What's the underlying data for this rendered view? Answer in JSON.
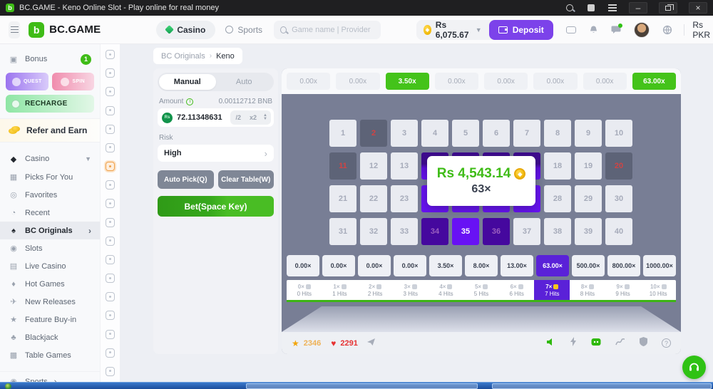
{
  "titlebar": {
    "title": "BC.GAME - Keno Online Slot - Play online for real money"
  },
  "header": {
    "brand": "BC.GAME",
    "casino_tab": "Casino",
    "sports_tab": "Sports",
    "search_placeholder": "Game name | Provider",
    "balance": "Rs 6,075.67",
    "deposit_label": "Deposit",
    "currency_label": "Rs PKR"
  },
  "sidebar": {
    "bonus_label": "Bonus",
    "bonus_badge": "1",
    "quest_label": "QUEST",
    "spin_label": "SPIN",
    "recharge_label": "RECHARGE",
    "refer_label": "Refer and Earn",
    "casino_label": "Casino",
    "items": [
      {
        "label": "Picks For You",
        "icon": "grid-icon"
      },
      {
        "label": "Favorites",
        "icon": "favorites-icon"
      },
      {
        "label": "Recent",
        "icon": "recent-icon"
      },
      {
        "label": "BC Originals",
        "icon": "bc-originals-icon",
        "active": true,
        "chevron": true
      },
      {
        "label": "Slots",
        "icon": "slots-icon"
      },
      {
        "label": "Live Casino",
        "icon": "live-casino-icon"
      },
      {
        "label": "Hot Games",
        "icon": "hot-games-icon"
      },
      {
        "label": "New Releases",
        "icon": "new-releases-icon"
      },
      {
        "label": "Feature Buy-in",
        "icon": "feature-buyin-icon"
      },
      {
        "label": "Blackjack",
        "icon": "blackjack-icon"
      },
      {
        "label": "Table Games",
        "icon": "table-games-icon"
      }
    ],
    "sports_label": "Sports"
  },
  "icons": {
    "grid-icon": "▦",
    "favorites-icon": "◎",
    "recent-icon": "◔",
    "bc-originals-icon": "♠",
    "slots-icon": "◉",
    "live-casino-icon": "▤",
    "hot-games-icon": "♦",
    "new-releases-icon": "✈",
    "feature-buyin-icon": "★",
    "blackjack-icon": "♣",
    "table-games-icon": "▩",
    "casino-icon": "◆",
    "sports-icon": "◉",
    "star-icon": "★",
    "heart-icon": "♥"
  },
  "game_rail": {
    "count": 18,
    "active_index": 6
  },
  "breadcrumb": {
    "parent": "BC Originals",
    "separator": "›",
    "current": "Keno"
  },
  "panel": {
    "manual_tab": "Manual",
    "auto_tab": "Auto",
    "amount_label": "Amount",
    "amount_value": "0.00112712 BNB",
    "bet_value": "72.11348631",
    "half_label": "/2",
    "double_label": "x2",
    "risk_label": "Risk",
    "risk_value": "High",
    "auto_pick_label": "Auto Pick(Q)",
    "clear_table_label": "Clear Table(W)",
    "bet_label": "Bet(Space Key)"
  },
  "game": {
    "history": [
      {
        "label": "0.00x",
        "win": false
      },
      {
        "label": "0.00x",
        "win": false
      },
      {
        "label": "3.50x",
        "win": true
      },
      {
        "label": "0.00x",
        "win": false
      },
      {
        "label": "0.00x",
        "win": false
      },
      {
        "label": "0.00x",
        "win": false
      },
      {
        "label": "0.00x",
        "win": false
      },
      {
        "label": "63.00x",
        "win": true
      }
    ],
    "board": {
      "total": 40,
      "drawn_missed": [
        2,
        11,
        20
      ],
      "selected_hit": [
        14,
        15,
        16,
        17
      ],
      "selected_hit_dim": [
        34,
        36
      ],
      "selected": [
        24,
        25,
        26,
        27,
        35
      ]
    },
    "win_popup": {
      "amount": "Rs 4,543.14",
      "multiplier": "63×"
    },
    "payouts": [
      {
        "label": "0.00×",
        "active": false
      },
      {
        "label": "0.00×",
        "active": false
      },
      {
        "label": "0.00×",
        "active": false
      },
      {
        "label": "0.00×",
        "active": false
      },
      {
        "label": "3.50×",
        "active": false
      },
      {
        "label": "8.00×",
        "active": false
      },
      {
        "label": "13.00×",
        "active": false
      },
      {
        "label": "63.00×",
        "active": true
      },
      {
        "label": "500.00×",
        "active": false
      },
      {
        "label": "800.00×",
        "active": false
      },
      {
        "label": "1000.00×",
        "active": false
      }
    ],
    "hits": [
      {
        "mult": "0×",
        "sub": "0 Hits",
        "active": false
      },
      {
        "mult": "1×",
        "sub": "1 Hits",
        "active": false
      },
      {
        "mult": "2×",
        "sub": "2 Hits",
        "active": false
      },
      {
        "mult": "3×",
        "sub": "3 Hits",
        "active": false
      },
      {
        "mult": "4×",
        "sub": "4 Hits",
        "active": false
      },
      {
        "mult": "5×",
        "sub": "5 Hits",
        "active": false
      },
      {
        "mult": "6×",
        "sub": "6 Hits",
        "active": false
      },
      {
        "mult": "7×",
        "sub": "7 Hits",
        "active": true
      },
      {
        "mult": "8×",
        "sub": "8 Hits",
        "active": false
      },
      {
        "mult": "9×",
        "sub": "9 Hits",
        "active": false
      },
      {
        "mult": "10×",
        "sub": "10 Hits",
        "active": false
      }
    ],
    "social": {
      "stars": "2346",
      "likes": "2291"
    }
  },
  "colors": {
    "accent_green": "#3fbc17",
    "win_green": "#44c31a",
    "deposit_purple": "#7c42ea",
    "tile_purple": "#6812f4",
    "active_purple": "#5a21d8",
    "board_slate": "#787e95",
    "miss_red": "#d24343"
  }
}
